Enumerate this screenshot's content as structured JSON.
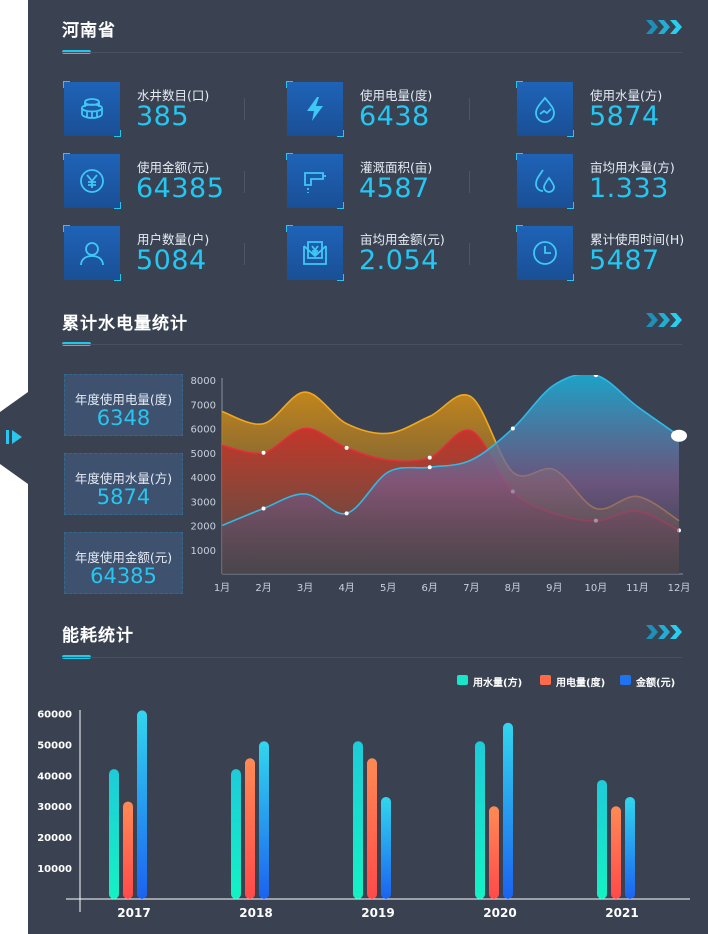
{
  "sections": {
    "province": "河南省",
    "cumulative": "累计水电量统计",
    "energy": "能耗统计"
  },
  "stats": [
    {
      "label": "水井数目(口)",
      "value": "385",
      "icon": "well-icon"
    },
    {
      "label": "使用电量(度)",
      "value": "6438",
      "icon": "lightning-icon"
    },
    {
      "label": "使用水量(方)",
      "value": "5874",
      "icon": "water-drop-icon"
    },
    {
      "label": "使用金额(元)",
      "value": "64385",
      "icon": "yen-coin-icon"
    },
    {
      "label": "灌溉面积(亩)",
      "value": "4587",
      "icon": "faucet-icon"
    },
    {
      "label": "亩均用水量(方)",
      "value": "1.333",
      "icon": "droplets-icon"
    },
    {
      "label": "用户数量(户)",
      "value": "5084",
      "icon": "user-icon"
    },
    {
      "label": "亩均用金额(元)",
      "value": "2.054",
      "icon": "yen-document-icon"
    },
    {
      "label": "累计使用时间(H)",
      "value": "5487",
      "icon": "clock-icon"
    }
  ],
  "yearly": [
    {
      "label": "年度使用电量(度)",
      "value": "6348"
    },
    {
      "label": "年度使用水量(方)",
      "value": "5874"
    },
    {
      "label": "年度使用金额(元)",
      "value": "64385"
    }
  ],
  "colors": {
    "accent": "#1ec8e6",
    "panel": "#3a4252",
    "water": "#18e6c8",
    "electric": "#ff6a4a",
    "money": "#1f73f0"
  },
  "chart_data": [
    {
      "type": "area",
      "categories": [
        "1月",
        "2月",
        "3月",
        "4月",
        "5月",
        "6月",
        "7月",
        "8月",
        "9月",
        "10月",
        "11月",
        "12月"
      ],
      "yticks": [
        1000,
        2000,
        3000,
        4000,
        5000,
        6000,
        7000,
        8000
      ],
      "ylim": [
        0,
        8000
      ],
      "series": [
        {
          "values": [
            6700,
            6200,
            7500,
            6200,
            5800,
            6500,
            7300,
            4200,
            4300,
            2700,
            3200,
            2200
          ]
        },
        {
          "values": [
            5300,
            5000,
            6000,
            5200,
            4700,
            4800,
            5900,
            3400,
            2500,
            2200,
            2600,
            1800
          ]
        },
        {
          "values": [
            2000,
            2700,
            3300,
            2500,
            4200,
            4400,
            4700,
            6000,
            7800,
            8200,
            6900,
            5700
          ]
        }
      ]
    },
    {
      "type": "bar",
      "categories": [
        "2017",
        "2018",
        "2019",
        "2020",
        "2021"
      ],
      "yticks": [
        10000,
        20000,
        30000,
        40000,
        50000,
        60000
      ],
      "ylim": [
        0,
        65000
      ],
      "legend_position": "top-right",
      "series": [
        {
          "name": "用水量(方)",
          "values": [
            42000,
            42000,
            51000,
            51000,
            38500
          ]
        },
        {
          "name": "用电量(度)",
          "values": [
            31500,
            45500,
            45500,
            30000,
            30000
          ]
        },
        {
          "name": "金额(元)",
          "values": [
            61000,
            51000,
            33000,
            57000,
            33000
          ]
        }
      ]
    }
  ]
}
